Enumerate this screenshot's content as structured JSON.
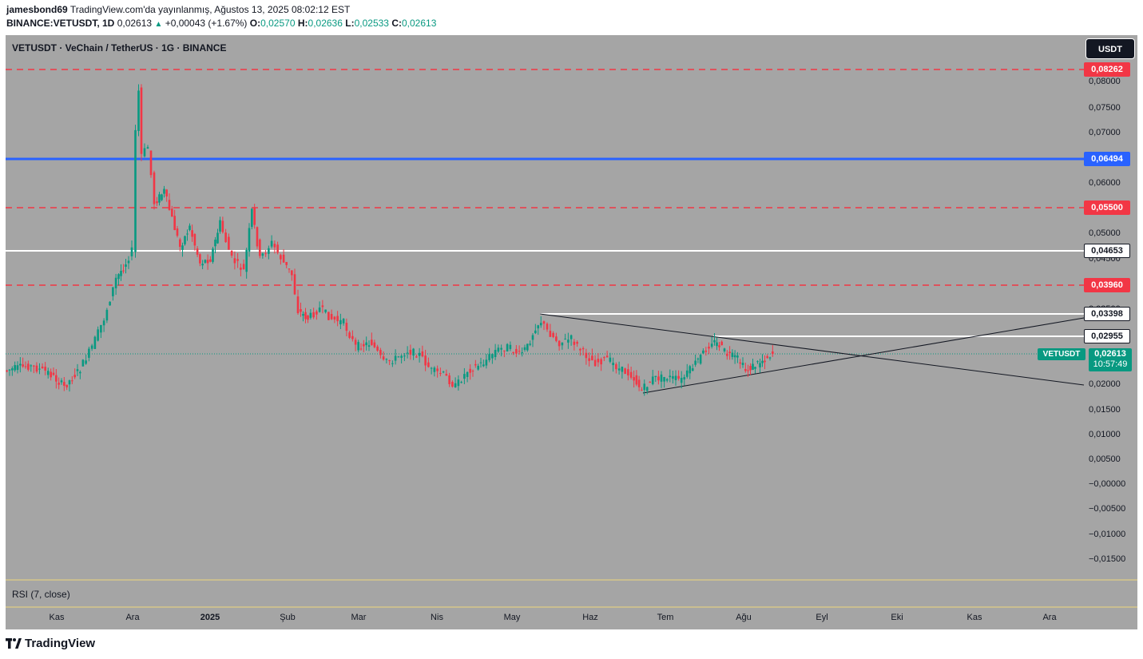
{
  "header": {
    "author": "jamesbond69",
    "published": "TradingView.com'da yayınlanmış, Ağustos 13, 2025 08:02:12 EST",
    "symbol_line": "BINANCE:VETUSDT, 1D",
    "last": "0,02613",
    "change": "+0,00043 (+1.67%)",
    "o_label": "O:",
    "o": "0,02570",
    "h_label": "H:",
    "h": "0,02636",
    "l_label": "L:",
    "l": "0,02533",
    "c_label": "C:",
    "c": "0,02613"
  },
  "chart": {
    "title": "VETUSDT · VeChain / TetherUS · 1G · BINANCE",
    "currency_button": "USDT",
    "y_ticks": [
      "0,08000",
      "0,07500",
      "0,07000",
      "0,06000",
      "0,05000",
      "0,04500",
      "0,03500",
      "0,02000",
      "0,01500",
      "0,01000",
      "0,00500",
      "−0,00000",
      "−0,00500",
      "−0,01000",
      "−0,01500"
    ],
    "levels": [
      {
        "label": "0,08262",
        "style": "red"
      },
      {
        "label": "0,06494",
        "style": "blue"
      },
      {
        "label": "0,05500",
        "style": "red"
      },
      {
        "label": "0,04653",
        "style": "white"
      },
      {
        "label": "0,03960",
        "style": "red"
      },
      {
        "label": "0,03398",
        "style": "white"
      },
      {
        "label": "0,02955",
        "style": "white"
      }
    ],
    "price_tag": {
      "symbol": "VETUSDT",
      "price": "0,02613",
      "countdown": "10:57:49"
    },
    "x_ticks": [
      "Kas",
      "Ara",
      "2025",
      "Şub",
      "Mar",
      "Nis",
      "May",
      "Haz",
      "Tem",
      "Ağu",
      "Eyl",
      "Eki",
      "Kas",
      "Ara"
    ],
    "colors": {
      "up": "#089981",
      "down": "#f23645",
      "background": "#a5a5a5",
      "blue_level": "#2962ff"
    }
  },
  "rsi": {
    "label": "RSI (7, close)"
  },
  "footer": {
    "brand": "TradingView"
  }
}
